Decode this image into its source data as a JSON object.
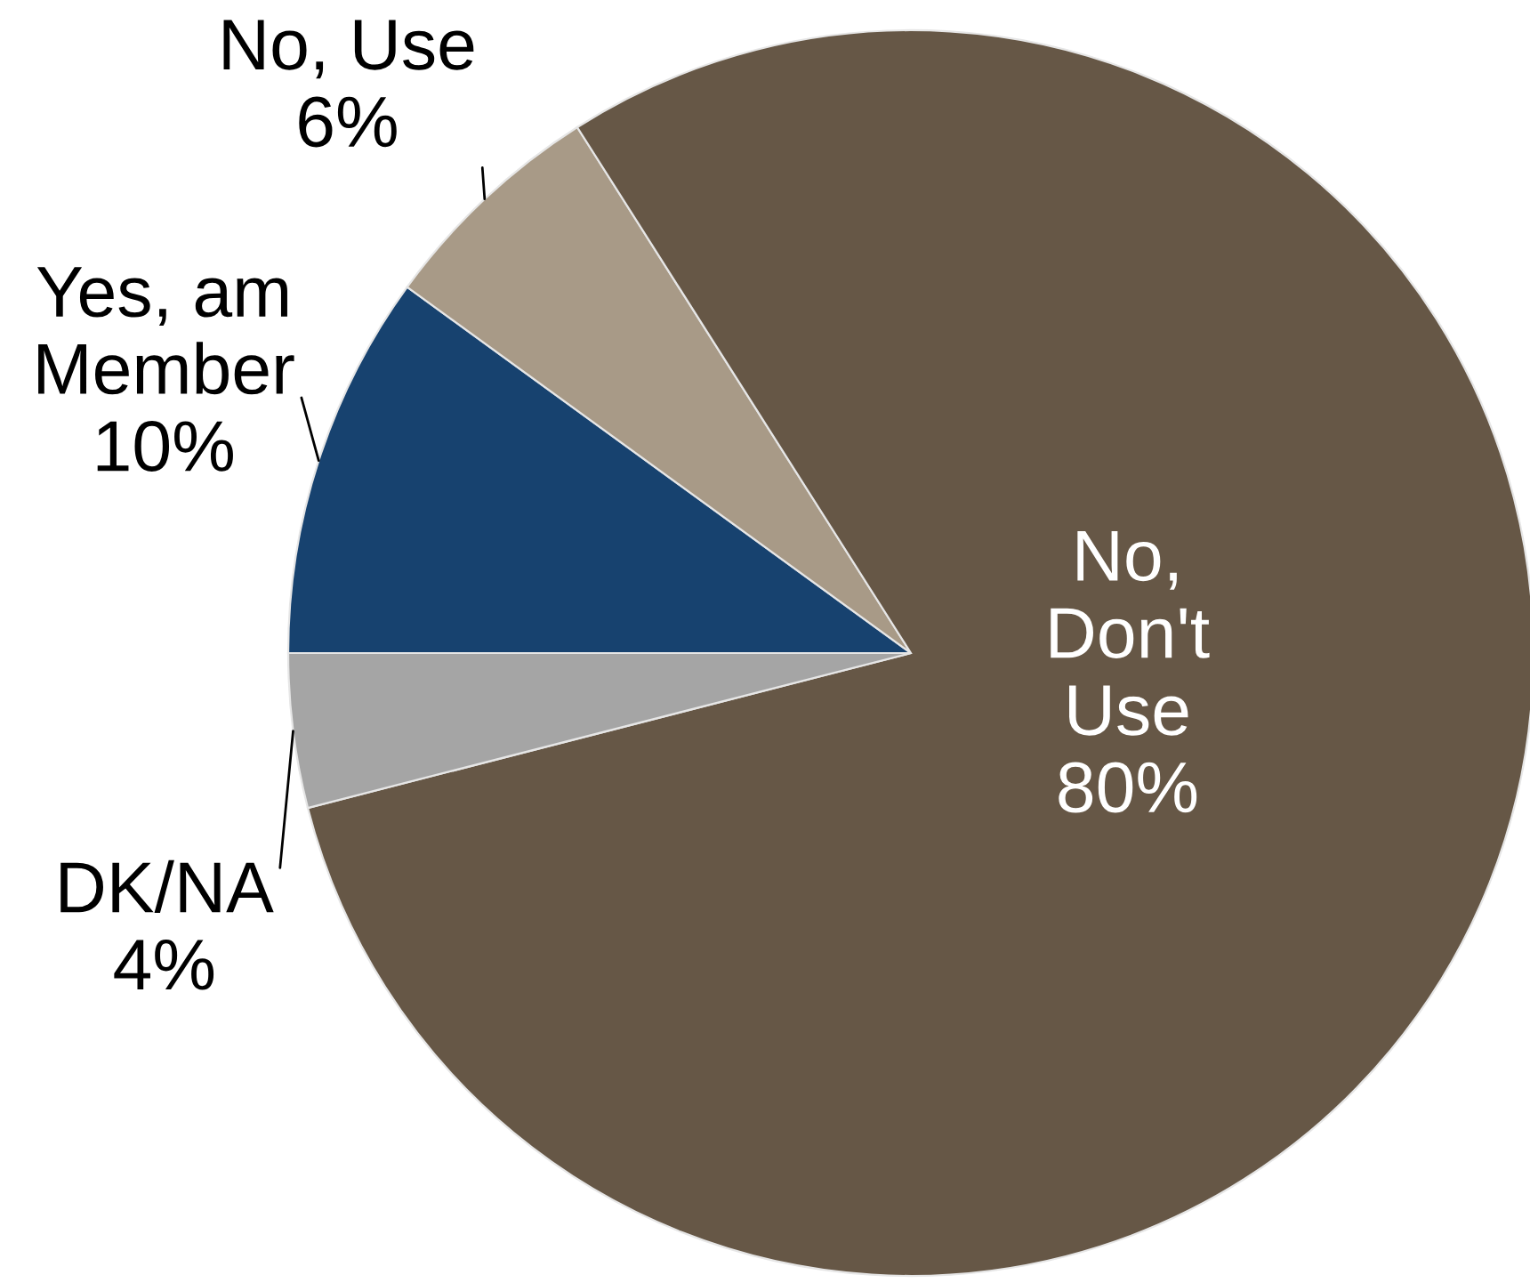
{
  "chart_data": {
    "type": "pie",
    "categories": [
      "Yes, am Member",
      "No, Use",
      "No, Don't Use",
      "DK/NA"
    ],
    "values": [
      10,
      6,
      80,
      4
    ],
    "value_labels": [
      "10%",
      "6%",
      "80%",
      "4%"
    ],
    "colors": [
      "#17426f",
      "#a89a87",
      "#665746",
      "#a5a5a5"
    ]
  }
}
